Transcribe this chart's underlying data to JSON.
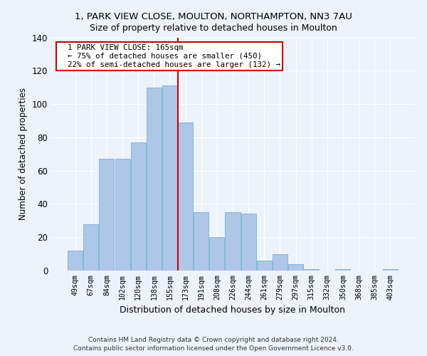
{
  "title_line1": "1, PARK VIEW CLOSE, MOULTON, NORTHAMPTON, NN3 7AU",
  "title_line2": "Size of property relative to detached houses in Moulton",
  "xlabel": "Distribution of detached houses by size in Moulton",
  "ylabel": "Number of detached properties",
  "bar_labels": [
    "49sqm",
    "67sqm",
    "84sqm",
    "102sqm",
    "120sqm",
    "138sqm",
    "155sqm",
    "173sqm",
    "191sqm",
    "208sqm",
    "226sqm",
    "244sqm",
    "261sqm",
    "279sqm",
    "297sqm",
    "315sqm",
    "332sqm",
    "350sqm",
    "368sqm",
    "385sqm",
    "403sqm"
  ],
  "bar_values": [
    12,
    28,
    67,
    67,
    77,
    110,
    111,
    89,
    35,
    20,
    35,
    34,
    6,
    10,
    4,
    1,
    0,
    1,
    0,
    0,
    1
  ],
  "bar_color": "#aec6e8",
  "bar_edgecolor": "#7bafd4",
  "property_line_x": 6.5,
  "annotation_text": "  1 PARK VIEW CLOSE: 165sqm\n  ← 75% of detached houses are smaller (450)\n  22% of semi-detached houses are larger (132) →",
  "annotation_box_color": "#ffffff",
  "annotation_box_edgecolor": "#cc0000",
  "redline_color": "#cc0000",
  "background_color": "#eef2fb",
  "grid_color": "#ffffff",
  "footer_line1": "Contains HM Land Registry data © Crown copyright and database right 2024.",
  "footer_line2": "Contains public sector information licensed under the Open Government Licence v3.0.",
  "ylim": [
    0,
    140
  ],
  "yticks": [
    0,
    20,
    40,
    60,
    80,
    100,
    120,
    140
  ]
}
